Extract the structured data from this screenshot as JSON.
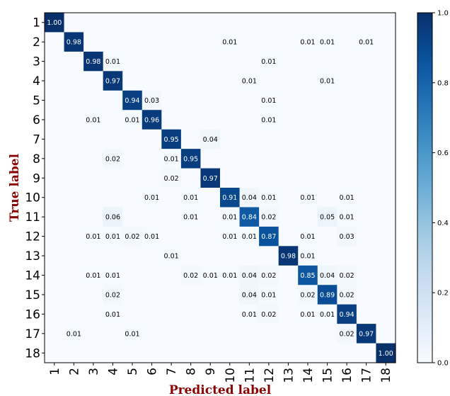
{
  "chart_data": {
    "type": "heatmap",
    "title": "",
    "xlabel": "Predicted label",
    "ylabel": "True label",
    "x_tick_labels": [
      "1",
      "2",
      "3",
      "4",
      "5",
      "6",
      "7",
      "8",
      "9",
      "10",
      "11",
      "12",
      "13",
      "14",
      "15",
      "16",
      "17",
      "18"
    ],
    "y_tick_labels": [
      "1",
      "2",
      "3",
      "4",
      "5",
      "6",
      "7",
      "8",
      "9",
      "10",
      "11",
      "12",
      "13",
      "14",
      "15",
      "16",
      "17",
      "18"
    ],
    "colormap": "Blues",
    "value_range": [
      0,
      1
    ],
    "colorbar_ticks": [
      "0.0",
      "0.2",
      "0.4",
      "0.6",
      "0.8",
      "1.0"
    ],
    "colorbar_tick_values": [
      0,
      0.2,
      0.4,
      0.6,
      0.8,
      1.0
    ],
    "label_threshold": 0.5,
    "cells": [
      [
        1,
        1,
        "1.00"
      ],
      [
        2,
        2,
        "0.98"
      ],
      [
        2,
        10,
        "0.01"
      ],
      [
        2,
        14,
        "0.01"
      ],
      [
        2,
        15,
        "0.01"
      ],
      [
        2,
        17,
        "0.01"
      ],
      [
        3,
        3,
        "0.98"
      ],
      [
        3,
        4,
        "0.01"
      ],
      [
        3,
        12,
        "0.01"
      ],
      [
        4,
        4,
        "0.97"
      ],
      [
        4,
        11,
        "0.01"
      ],
      [
        4,
        15,
        "0.01"
      ],
      [
        5,
        5,
        "0.94"
      ],
      [
        5,
        6,
        "0.03"
      ],
      [
        5,
        12,
        "0.01"
      ],
      [
        6,
        3,
        "0.01"
      ],
      [
        6,
        5,
        "0.01"
      ],
      [
        6,
        6,
        "0.96"
      ],
      [
        6,
        12,
        "0.01"
      ],
      [
        7,
        7,
        "0.95"
      ],
      [
        7,
        9,
        "0.04"
      ],
      [
        8,
        4,
        "0.02"
      ],
      [
        8,
        7,
        "0.01"
      ],
      [
        8,
        8,
        "0.95"
      ],
      [
        9,
        7,
        "0.02"
      ],
      [
        9,
        9,
        "0.97"
      ],
      [
        10,
        6,
        "0.01"
      ],
      [
        10,
        8,
        "0.01"
      ],
      [
        10,
        10,
        "0.91"
      ],
      [
        10,
        11,
        "0.04"
      ],
      [
        10,
        12,
        "0.01"
      ],
      [
        10,
        14,
        "0.01"
      ],
      [
        10,
        16,
        "0.01"
      ],
      [
        11,
        4,
        "0.06"
      ],
      [
        11,
        8,
        "0.01"
      ],
      [
        11,
        10,
        "0.01"
      ],
      [
        11,
        11,
        "0.84"
      ],
      [
        11,
        12,
        "0.02"
      ],
      [
        11,
        15,
        "0.05"
      ],
      [
        11,
        16,
        "0.01"
      ],
      [
        12,
        3,
        "0.01"
      ],
      [
        12,
        4,
        "0.01"
      ],
      [
        12,
        5,
        "0.02"
      ],
      [
        12,
        6,
        "0.01"
      ],
      [
        12,
        10,
        "0.01"
      ],
      [
        12,
        11,
        "0.01"
      ],
      [
        12,
        12,
        "0.87"
      ],
      [
        12,
        14,
        "0.01"
      ],
      [
        12,
        16,
        "0.03"
      ],
      [
        13,
        7,
        "0.01"
      ],
      [
        13,
        13,
        "0.98"
      ],
      [
        13,
        14,
        "0.01"
      ],
      [
        14,
        3,
        "0.01"
      ],
      [
        14,
        4,
        "0.01"
      ],
      [
        14,
        8,
        "0.02"
      ],
      [
        14,
        9,
        "0.01"
      ],
      [
        14,
        10,
        "0.01"
      ],
      [
        14,
        11,
        "0.04"
      ],
      [
        14,
        12,
        "0.02"
      ],
      [
        14,
        14,
        "0.85"
      ],
      [
        14,
        15,
        "0.04"
      ],
      [
        14,
        16,
        "0.02"
      ],
      [
        15,
        4,
        "0.02"
      ],
      [
        15,
        11,
        "0.04"
      ],
      [
        15,
        12,
        "0.01"
      ],
      [
        15,
        14,
        "0.02"
      ],
      [
        15,
        15,
        "0.89"
      ],
      [
        15,
        16,
        "0.02"
      ],
      [
        16,
        4,
        "0.01"
      ],
      [
        16,
        11,
        "0.01"
      ],
      [
        16,
        12,
        "0.02"
      ],
      [
        16,
        14,
        "0.01"
      ],
      [
        16,
        15,
        "0.01"
      ],
      [
        16,
        16,
        "0.94"
      ],
      [
        17,
        2,
        "0.01"
      ],
      [
        17,
        5,
        "0.01"
      ],
      [
        17,
        16,
        "0.02"
      ],
      [
        17,
        17,
        "0.97"
      ],
      [
        18,
        18,
        "1.00"
      ]
    ]
  }
}
